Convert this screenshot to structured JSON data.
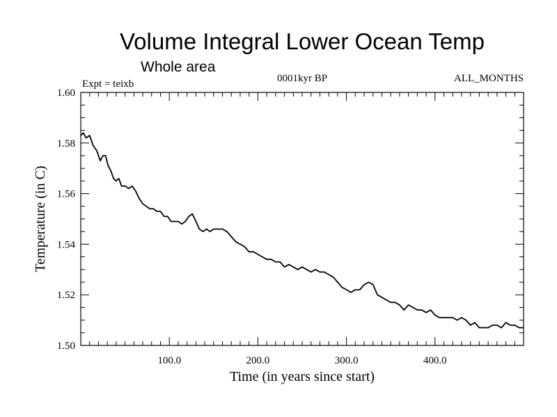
{
  "chart_data": {
    "type": "line",
    "title": "Volume Integral Lower Ocean Temp",
    "subtitle": "Whole area",
    "annotations": {
      "left": "Expt = teixb",
      "center": "0001kyr BP",
      "right": "ALL_MONTHS"
    },
    "xlabel": "Time (in years since start)",
    "ylabel": "Temperature (in C)",
    "xlim": [
      0,
      500
    ],
    "ylim": [
      1.5,
      1.6
    ],
    "x_ticks": [
      100,
      200,
      300,
      400
    ],
    "x_tick_labels": [
      "100.0",
      "200.0",
      "300.0",
      "400.0"
    ],
    "y_ticks": [
      1.5,
      1.52,
      1.54,
      1.56,
      1.58,
      1.6
    ],
    "y_tick_labels": [
      "1.50",
      "1.52",
      "1.54",
      "1.56",
      "1.58",
      "1.60"
    ],
    "grid": false,
    "color": "#000000",
    "series": [
      {
        "x": [
          0,
          3,
          6,
          10,
          14,
          18,
          22,
          25,
          28,
          31,
          34,
          37,
          40,
          43,
          46,
          50,
          54,
          58,
          62,
          66,
          70,
          74,
          78,
          82,
          86,
          90,
          94,
          98,
          102,
          106,
          110,
          114,
          118,
          122,
          126,
          130,
          134,
          138,
          142,
          146,
          150,
          155,
          160,
          165,
          170,
          175,
          180,
          185,
          190,
          195,
          200,
          205,
          210,
          215,
          220,
          225,
          230,
          235,
          240,
          245,
          250,
          255,
          260,
          265,
          270,
          275,
          280,
          285,
          290,
          295,
          300,
          305,
          310,
          315,
          320,
          325,
          330,
          335,
          340,
          345,
          350,
          355,
          360,
          365,
          370,
          375,
          380,
          385,
          390,
          395,
          400,
          405,
          410,
          415,
          420,
          425,
          430,
          435,
          440,
          445,
          450,
          455,
          460,
          465,
          470,
          475,
          480,
          485,
          490,
          495,
          500
        ],
        "y": [
          1.583,
          1.584,
          1.582,
          1.583,
          1.579,
          1.577,
          1.573,
          1.575,
          1.575,
          1.571,
          1.569,
          1.566,
          1.565,
          1.566,
          1.563,
          1.563,
          1.562,
          1.563,
          1.561,
          1.558,
          1.556,
          1.555,
          1.554,
          1.554,
          1.553,
          1.553,
          1.551,
          1.551,
          1.549,
          1.549,
          1.549,
          1.548,
          1.549,
          1.551,
          1.552,
          1.549,
          1.546,
          1.545,
          1.546,
          1.545,
          1.546,
          1.546,
          1.546,
          1.545,
          1.543,
          1.541,
          1.54,
          1.539,
          1.537,
          1.537,
          1.536,
          1.535,
          1.534,
          1.534,
          1.533,
          1.533,
          1.531,
          1.532,
          1.531,
          1.53,
          1.531,
          1.53,
          1.529,
          1.53,
          1.529,
          1.529,
          1.528,
          1.527,
          1.525,
          1.523,
          1.522,
          1.521,
          1.522,
          1.522,
          1.524,
          1.525,
          1.524,
          1.52,
          1.519,
          1.518,
          1.517,
          1.517,
          1.516,
          1.514,
          1.516,
          1.515,
          1.514,
          1.514,
          1.513,
          1.514,
          1.512,
          1.511,
          1.511,
          1.511,
          1.511,
          1.51,
          1.511,
          1.51,
          1.508,
          1.509,
          1.507,
          1.507,
          1.507,
          1.508,
          1.508,
          1.507,
          1.509,
          1.508,
          1.508,
          1.507,
          1.507
        ]
      }
    ]
  }
}
